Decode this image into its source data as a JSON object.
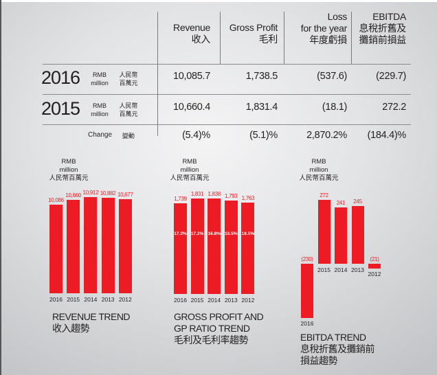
{
  "table": {
    "headers": [
      {
        "en": "Revenue",
        "zh": "收入"
      },
      {
        "en": "Gross Profit",
        "zh": "毛利"
      },
      {
        "en": "Loss",
        "en2": "for the year",
        "zh": "年度虧損"
      },
      {
        "en": "EBITDA",
        "zh": "息稅折舊及",
        "zh2": "攤銷前損益"
      }
    ],
    "unit": {
      "en1": "RMB",
      "en2": "million",
      "zh1": "人民幣",
      "zh2": "百萬元"
    },
    "rows": [
      {
        "year": "2016",
        "values": [
          "10,085.7",
          "1,738.5",
          "(537.6)",
          "(229.7)"
        ]
      },
      {
        "year": "2015",
        "values": [
          "10,660.4",
          "1,831.4",
          "(18.1)",
          "272.2"
        ]
      }
    ],
    "change": {
      "label_en": "Change",
      "label_zh": "變動",
      "values": [
        "(5.4)%",
        "(5.1)%",
        "2,870.2%",
        "(184.4)%"
      ]
    }
  },
  "chart_unit": {
    "l1": "RMB",
    "l2": "million",
    "l3": "人民幣百萬元"
  },
  "chart_data": [
    {
      "type": "bar",
      "title": "REVENUE TREND",
      "title_zh": "收入趨勢",
      "categories": [
        "2016",
        "2015",
        "2014",
        "2013",
        "2012"
      ],
      "values": [
        10086,
        10660,
        10912,
        10882,
        10677
      ],
      "labels": [
        "10,086",
        "10,660",
        "10,912",
        "10,882",
        "10,677"
      ],
      "color": "#ed1c24"
    },
    {
      "type": "bar",
      "title": "GROSS PROFIT AND",
      "title2": "GP RATIO TREND",
      "title_zh": "毛利及毛利率趨勢",
      "categories": [
        "2016",
        "2015",
        "2014",
        "2013",
        "2012"
      ],
      "values": [
        1739,
        1831,
        1838,
        1793,
        1763
      ],
      "labels": [
        "1,739",
        "1,831",
        "1,838",
        "1,793",
        "1,763"
      ],
      "ratios": [
        "17.2%",
        "17.2%",
        "16.8%",
        "16.5%",
        "16.5%"
      ],
      "color": "#ed1c24"
    },
    {
      "type": "bar",
      "title": "EBITDA TREND",
      "title_zh": "息稅折舊及攤銷前",
      "title_zh2": "損益趨勢",
      "categories": [
        "2016",
        "2015",
        "2014",
        "2013",
        "2012"
      ],
      "values": [
        -230,
        272,
        241,
        245,
        -21
      ],
      "labels": [
        "(230)",
        "272",
        "241",
        "245",
        "(21)"
      ],
      "color": "#ed1c24"
    }
  ]
}
